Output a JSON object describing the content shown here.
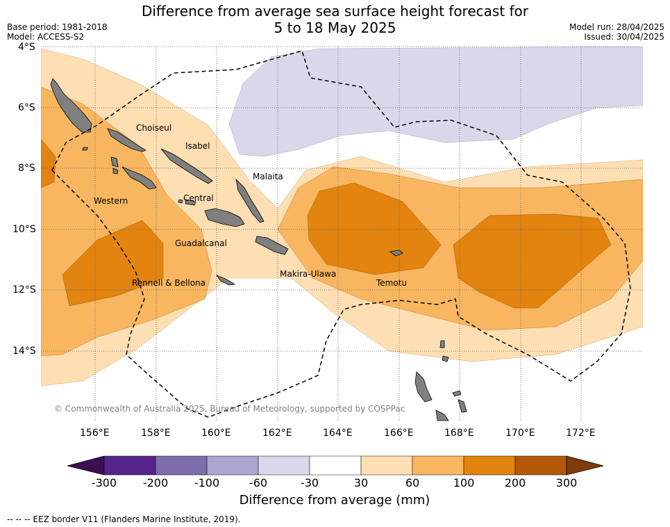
{
  "header": {
    "title_line1": "Difference from average sea surface height forecast for",
    "title_line2": "5 to 18 May 2025",
    "base_period": "Base period: 1981-2018",
    "model": "Model: ACCESS-S2",
    "model_run": "Model run: 28/04/2025",
    "issued": "Issued: 30/04/2025"
  },
  "map": {
    "lat_ticks": [
      "4°S",
      "6°S",
      "8°S",
      "10°S",
      "12°S",
      "14°S"
    ],
    "lon_ticks": [
      "156°E",
      "158°E",
      "160°E",
      "162°E",
      "164°E",
      "166°E",
      "168°E",
      "170°E",
      "172°E"
    ],
    "province_labels": [
      "Choiseul",
      "Isabel",
      "Malaita",
      "Western",
      "Central",
      "Guadalcanal",
      "Rennell & Bellona",
      "Makira-Ulawa",
      "Temotu"
    ],
    "copyright": "© Commonwealth of Australia 2025, Bureau of Meteorology, supported by COSPPac",
    "land_color": "#808080"
  },
  "colorbar": {
    "tick_labels": [
      "-300",
      "-200",
      "-100",
      "-60",
      "-30",
      "30",
      "60",
      "100",
      "200",
      "300"
    ],
    "colors": [
      "#3b0f54",
      "#55248a",
      "#7e6cac",
      "#ada4cf",
      "#d8d8ea",
      "#ffffff",
      "#fddfb3",
      "#f9b660",
      "#e2840f",
      "#b35806",
      "#7f3b08"
    ],
    "title": "Difference from average (mm)"
  },
  "footer": {
    "legend": "-- -- -- EEZ border V11 (Flanders Marine Institute, 2019)."
  }
}
